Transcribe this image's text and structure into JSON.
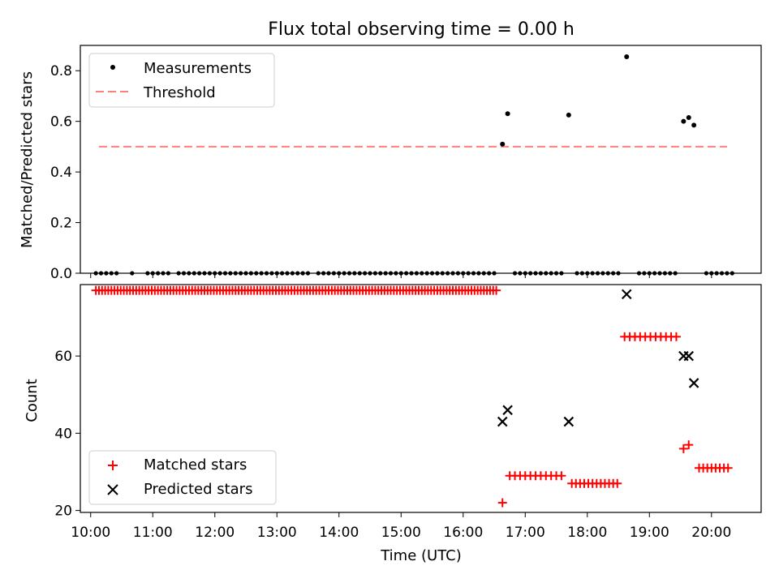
{
  "figure": {
    "title": "Flux total observing time = 0.00 h"
  },
  "chart_data": [
    {
      "type": "scatter",
      "panel": "top",
      "title": "Flux total observing time = 0.00 h",
      "xlabel": "",
      "ylabel": "Matched/Predicted stars",
      "ylim": [
        0,
        0.9
      ],
      "yticks": [
        0.0,
        0.2,
        0.4,
        0.6,
        0.8
      ],
      "ytick_labels": [
        "0.0",
        "0.2",
        "0.4",
        "0.6",
        "0.8"
      ],
      "legend": {
        "placement": "top-left",
        "entries": [
          "Measurements",
          "Threshold"
        ]
      },
      "colors": {
        "measurements": "#000000",
        "threshold": "#ff7f7f"
      },
      "series": [
        {
          "name": "Measurements",
          "marker": "dot",
          "x_zero_start": "10:05",
          "x_zero_end": "16:33",
          "x_zero_step_min": 5,
          "zero_gaps": [
            "10:30",
            "10:35",
            "10:45",
            "10:50",
            "11:20",
            "13:35",
            "16:35",
            "16:40",
            "16:45",
            "17:45",
            "18:35",
            "18:40",
            "18:45",
            "19:35",
            "19:40",
            "19:45",
            "19:50"
          ],
          "x_zero_extra": [
            "16:50",
            "16:55",
            "17:00",
            "17:05",
            "17:10",
            "17:15",
            "17:20",
            "17:25",
            "17:30",
            "17:35",
            "17:50",
            "17:55",
            "18:00",
            "18:05",
            "18:10",
            "18:15",
            "18:20",
            "18:25",
            "18:30",
            "18:50",
            "18:55",
            "19:00",
            "19:05",
            "19:10",
            "19:15",
            "19:20",
            "19:25",
            "19:55",
            "20:00",
            "20:05",
            "20:10",
            "20:15",
            "20:20"
          ],
          "x": [
            "16:38",
            "16:43",
            "17:42",
            "18:38",
            "19:33",
            "19:38",
            "19:43"
          ],
          "y": [
            0.51,
            0.63,
            0.625,
            0.855,
            0.6,
            0.615,
            0.585
          ]
        },
        {
          "name": "Threshold",
          "style": "dashed",
          "x": [
            "10:08",
            "20:15"
          ],
          "y": [
            0.5,
            0.5
          ]
        }
      ]
    },
    {
      "type": "scatter",
      "panel": "bottom",
      "xlabel": "Time (UTC)",
      "ylabel": "Count",
      "ylim": [
        19.5,
        78.5
      ],
      "xlim": [
        "09:50",
        "20:48"
      ],
      "yticks": [
        20,
        40,
        60
      ],
      "ytick_labels": [
        "20",
        "40",
        "60"
      ],
      "xticks": [
        "10:00",
        "11:00",
        "12:00",
        "13:00",
        "14:00",
        "15:00",
        "16:00",
        "17:00",
        "18:00",
        "19:00",
        "20:00"
      ],
      "legend": {
        "placement": "bottom-left",
        "entries": [
          "Matched stars",
          "Predicted stars"
        ]
      },
      "colors": {
        "matched": "#ff0000",
        "predicted": "#000000"
      },
      "series": [
        {
          "name": "Matched stars",
          "marker": "plus",
          "segments": [
            {
              "from": "10:05",
              "to": "16:33",
              "step_min": 3,
              "y": 77
            },
            {
              "from": "16:45",
              "to": "17:38",
              "step_min": 5,
              "y": 29
            },
            {
              "from": "17:45",
              "to": "18:32",
              "step_min": 4,
              "y": 27
            },
            {
              "from": "18:36",
              "to": "19:28",
              "step_min": 5,
              "y": 65
            },
            {
              "from": "19:48",
              "to": "20:18",
              "step_min": 4,
              "y": 31
            }
          ],
          "x": [
            "16:38",
            "19:33",
            "19:38"
          ],
          "y": [
            22,
            36,
            37
          ]
        },
        {
          "name": "Predicted stars",
          "marker": "x",
          "x": [
            "16:38",
            "16:43",
            "17:42",
            "18:38",
            "19:33",
            "19:38",
            "19:43"
          ],
          "y": [
            43,
            46,
            43,
            76,
            60,
            60,
            53
          ]
        }
      ]
    }
  ]
}
